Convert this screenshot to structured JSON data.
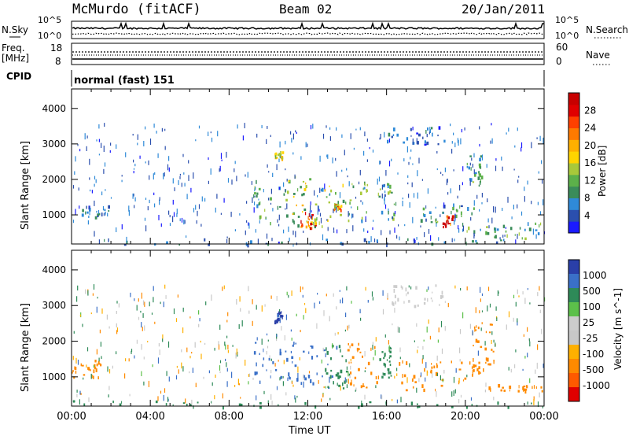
{
  "header": {
    "station": "McMurdo (fitACF)",
    "beam": "Beam 02",
    "date": "20/Jan/2011"
  },
  "chart_data": [
    {
      "type": "line",
      "name": "noise-panel",
      "left_label": "N.Sky",
      "right_label": "N.Search",
      "left_ticks": [
        "10^5",
        "10^0"
      ],
      "right_ticks": [
        "10^5",
        "10^0"
      ]
    },
    {
      "type": "line",
      "name": "frequency-panel",
      "left_label": "Freq.",
      "left_unit": "[MHz]",
      "left_ticks": [
        "18",
        "8"
      ],
      "left_range": [
        8,
        18
      ],
      "right_label": "Nave",
      "right_ticks": [
        "60",
        "0"
      ],
      "right_range": [
        0,
        60
      ]
    },
    {
      "type": "table",
      "name": "cpid-panel",
      "label": "CPID",
      "value": "normal (fast) 151"
    },
    {
      "type": "heatmap",
      "name": "power-panel",
      "ylabel": "Slant Range [km]",
      "yticks": [
        1000,
        2000,
        3000,
        4000
      ],
      "ylim": [
        180,
        4550
      ],
      "xlim": [
        0,
        24
      ],
      "colorbar_label": "Power [dB]",
      "colorbar_ticks": [
        4,
        8,
        12,
        16,
        20,
        24,
        28
      ],
      "colorbar_range": [
        0,
        32
      ],
      "colorbar_colors": [
        "#1a1aff",
        "#2b4fae",
        "#2f8ad8",
        "#3a8c5a",
        "#5cb04a",
        "#a8c83a",
        "#ffd400",
        "#ffb000",
        "#ff7a00",
        "#ff4000",
        "#e00000",
        "#c80000"
      ],
      "echo_regions": [
        {
          "t": [
            0.0,
            24.0
          ],
          "r": [
            180,
            350
          ],
          "value": 6
        },
        {
          "t": [
            0.5,
            2.0
          ],
          "r": [
            950,
            1300
          ],
          "value": 6
        },
        {
          "t": [
            9.2,
            11.0
          ],
          "r": [
            800,
            2000
          ],
          "value": 10
        },
        {
          "t": [
            10.3,
            10.7
          ],
          "r": [
            2550,
            2850
          ],
          "value": 14
        },
        {
          "t": [
            11.0,
            12.9
          ],
          "r": [
            650,
            2100
          ],
          "value": 14
        },
        {
          "t": [
            11.6,
            12.4
          ],
          "r": [
            650,
            1100
          ],
          "value": 26
        },
        {
          "t": [
            12.9,
            15.0
          ],
          "r": [
            850,
            2000
          ],
          "value": 12
        },
        {
          "t": [
            13.3,
            13.7
          ],
          "r": [
            1150,
            1350
          ],
          "value": 20
        },
        {
          "t": [
            15.5,
            16.5
          ],
          "r": [
            900,
            1900
          ],
          "value": 10
        },
        {
          "t": [
            17.5,
            20.5
          ],
          "r": [
            750,
            1400
          ],
          "value": 9
        },
        {
          "t": [
            18.8,
            19.4
          ],
          "r": [
            650,
            1000
          ],
          "value": 28
        },
        {
          "t": [
            20.0,
            20.8
          ],
          "r": [
            1800,
            2700
          ],
          "value": 10
        },
        {
          "t": [
            20.0,
            24.0
          ],
          "r": [
            350,
            800
          ],
          "value": 11
        },
        {
          "t": [
            16.0,
            19.0
          ],
          "r": [
            3000,
            3500
          ],
          "value": 5
        }
      ]
    },
    {
      "type": "heatmap",
      "name": "velocity-panel",
      "ylabel": "Slant Range [km]",
      "yticks": [
        1000,
        2000,
        3000,
        4000
      ],
      "ylim": [
        180,
        4550
      ],
      "xlim": [
        0,
        24
      ],
      "xticks": [
        "00:00",
        "04:00",
        "08:00",
        "12:00",
        "16:00",
        "20:00",
        "00:00"
      ],
      "xlabel": "Time UT",
      "colorbar_label": "Velocity [m s^-1]",
      "colorbar_ticks": [
        1000,
        500,
        100,
        25,
        -25,
        -100,
        -500,
        -1000
      ],
      "colorbar_colors": [
        "#2a3fa8",
        "#3a70c8",
        "#2e8a58",
        "#5cc04a",
        "#cccccc",
        "#c8c8c8",
        "#ffb000",
        "#ff8a00",
        "#ff5a00",
        "#e00000"
      ],
      "echo_regions": [
        {
          "t": [
            0.0,
            24.0
          ],
          "r": [
            180,
            350
          ],
          "value": 50
        },
        {
          "t": [
            0.0,
            1.5
          ],
          "r": [
            1000,
            1500
          ],
          "value": -150
        },
        {
          "t": [
            9.2,
            13.5
          ],
          "r": [
            700,
            2000
          ],
          "value": 200
        },
        {
          "t": [
            10.3,
            10.7
          ],
          "r": [
            2550,
            2850
          ],
          "value": 700
        },
        {
          "t": [
            12.8,
            14.0
          ],
          "r": [
            700,
            1900
          ],
          "value": 60
        },
        {
          "t": [
            14.0,
            15.5
          ],
          "r": [
            700,
            2000
          ],
          "value": -200
        },
        {
          "t": [
            15.5,
            16.2
          ],
          "r": [
            950,
            1900
          ],
          "value": 60
        },
        {
          "t": [
            16.5,
            20.8
          ],
          "r": [
            650,
            1500
          ],
          "value": -200
        },
        {
          "t": [
            20.3,
            21.5
          ],
          "r": [
            1200,
            2600
          ],
          "value": -200
        },
        {
          "t": [
            20.8,
            24.0
          ],
          "r": [
            600,
            800
          ],
          "value": -200
        },
        {
          "t": [
            16.0,
            19.0
          ],
          "r": [
            3000,
            3600
          ],
          "value": 0
        }
      ]
    }
  ]
}
